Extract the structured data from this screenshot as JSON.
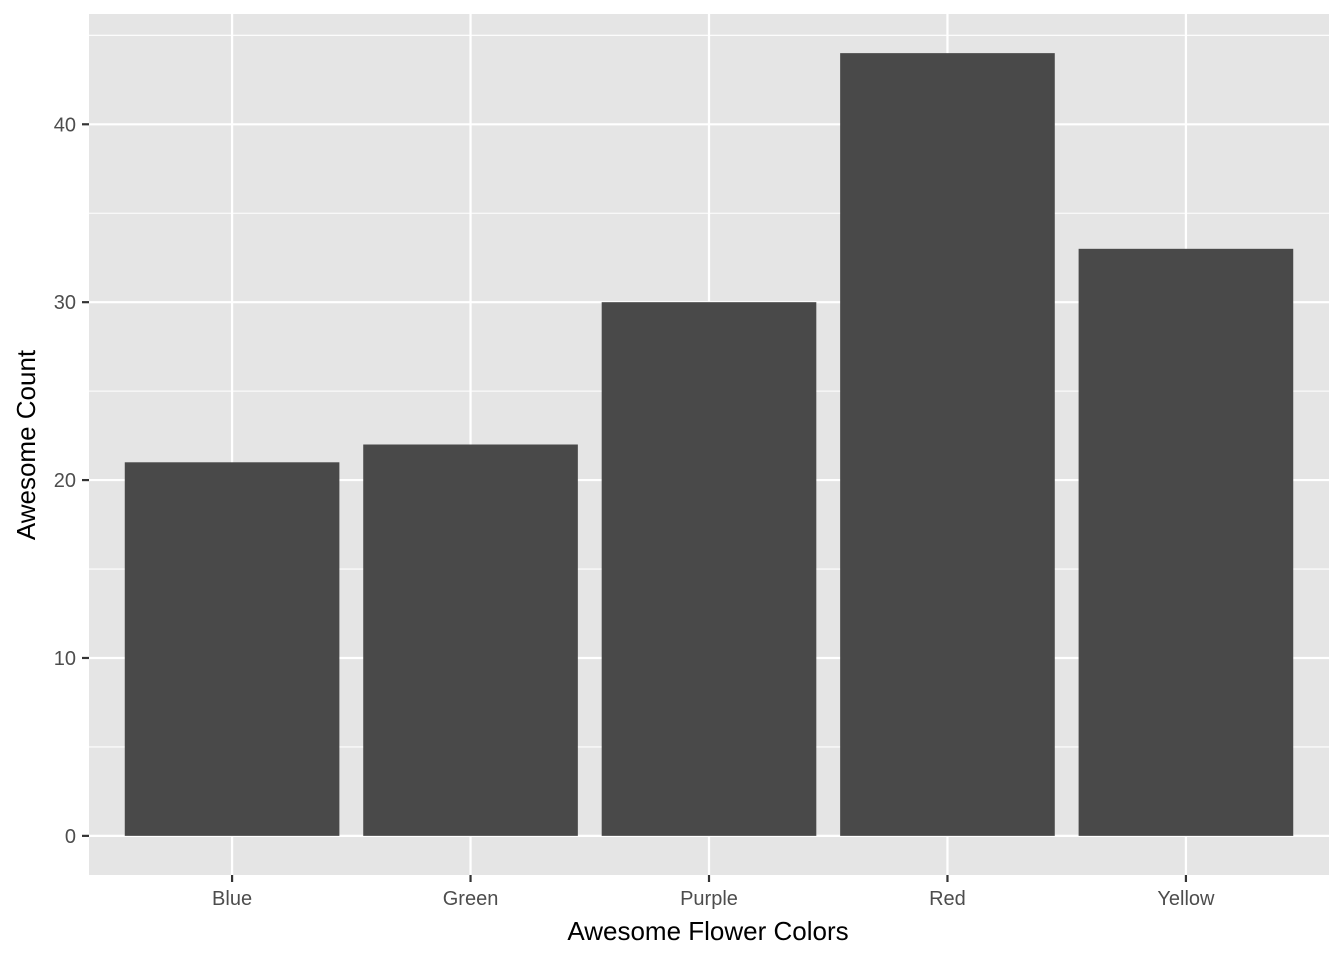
{
  "chart_data": {
    "type": "bar",
    "categories": [
      "Blue",
      "Green",
      "Purple",
      "Red",
      "Yellow"
    ],
    "values": [
      21,
      22,
      30,
      44,
      33
    ],
    "xlabel": "Awesome Flower Colors",
    "ylabel": "Awesome Count",
    "ylim": [
      -2.2,
      46.2
    ],
    "yticks": [
      0,
      10,
      20,
      30,
      40
    ],
    "grid": true,
    "colors": {
      "panel_background": "#e5e5e5",
      "grid_line": "#ffffff",
      "bar_fill": "#494949",
      "tick_color": "#333333",
      "tick_label_color": "#4d4d4d",
      "axis_title_color": "#000000"
    }
  }
}
